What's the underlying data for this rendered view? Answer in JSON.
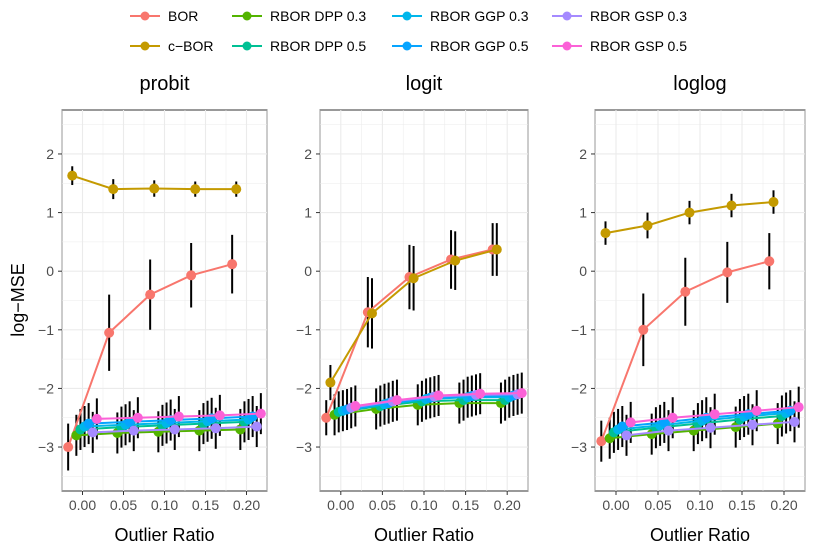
{
  "chart_data": {
    "type": "line",
    "xlabel": "Outlier Ratio",
    "ylabel": "log−MSE",
    "xlim": [
      -0.025,
      0.225
    ],
    "ylim": [
      -3.75,
      2.75
    ],
    "x_ticks": [
      0.0,
      0.05,
      0.1,
      0.15,
      0.2
    ],
    "x_tick_labels": [
      "0.00",
      "0.05",
      "0.10",
      "0.15",
      "0.20"
    ],
    "y_ticks": [
      -3,
      -2,
      -1,
      0,
      1,
      2
    ],
    "y_tick_labels": [
      "−3",
      "−2",
      "−1",
      "0",
      "1",
      "2"
    ],
    "grid": true,
    "legend_position": "top",
    "x": [
      0.0,
      0.05,
      0.1,
      0.15,
      0.2
    ],
    "series_info": [
      {
        "name": "BOR",
        "color": "#F8766D",
        "offset": -0.0175
      },
      {
        "name": "c−BOR",
        "color": "#C49A00",
        "offset": -0.0125
      },
      {
        "name": "RBOR DPP 0.3",
        "color": "#53B400",
        "offset": -0.0075
      },
      {
        "name": "RBOR DPP 0.5",
        "color": "#00C094",
        "offset": -0.0025
      },
      {
        "name": "RBOR GGP 0.3",
        "color": "#00B6EB",
        "offset": 0.0025
      },
      {
        "name": "RBOR GGP 0.5",
        "color": "#06A4FF",
        "offset": 0.0075
      },
      {
        "name": "RBOR GSP 0.3",
        "color": "#A58AFF",
        "offset": 0.0125
      },
      {
        "name": "RBOR GSP 0.5",
        "color": "#FB61D7",
        "offset": 0.0175
      }
    ],
    "legend_order": [
      0,
      2,
      4,
      6,
      1,
      3,
      5,
      7
    ],
    "panels": [
      {
        "title": "probit",
        "series": [
          {
            "name": "BOR",
            "values": [
              -3.0,
              -1.05,
              -0.4,
              -0.07,
              0.12
            ],
            "err": [
              0.4,
              0.65,
              0.6,
              0.55,
              0.5
            ]
          },
          {
            "name": "c−BOR",
            "values": [
              1.63,
              1.4,
              1.41,
              1.4,
              1.4
            ],
            "err": [
              0.16,
              0.17,
              0.14,
              0.13,
              0.13
            ]
          },
          {
            "name": "RBOR DPP 0.3",
            "values": [
              -2.8,
              -2.76,
              -2.74,
              -2.72,
              -2.7
            ],
            "err": [
              0.35,
              0.35,
              0.35,
              0.35,
              0.35
            ]
          },
          {
            "name": "RBOR DPP 0.5",
            "values": [
              -2.7,
              -2.66,
              -2.63,
              -2.6,
              -2.57
            ],
            "err": [
              0.35,
              0.35,
              0.35,
              0.35,
              0.35
            ]
          },
          {
            "name": "RBOR GGP 0.3",
            "values": [
              -2.65,
              -2.62,
              -2.59,
              -2.56,
              -2.53
            ],
            "err": [
              0.35,
              0.35,
              0.35,
              0.35,
              0.35
            ]
          },
          {
            "name": "RBOR GGP 0.5",
            "values": [
              -2.6,
              -2.57,
              -2.54,
              -2.51,
              -2.48
            ],
            "err": [
              0.35,
              0.35,
              0.35,
              0.35,
              0.35
            ]
          },
          {
            "name": "RBOR GSP 0.3",
            "values": [
              -2.75,
              -2.72,
              -2.7,
              -2.68,
              -2.65
            ],
            "err": [
              0.35,
              0.35,
              0.35,
              0.35,
              0.35
            ]
          },
          {
            "name": "RBOR GSP 0.5",
            "values": [
              -2.52,
              -2.5,
              -2.48,
              -2.46,
              -2.43
            ],
            "err": [
              0.35,
              0.35,
              0.35,
              0.35,
              0.35
            ]
          }
        ]
      },
      {
        "title": "logit",
        "series": [
          {
            "name": "BOR",
            "values": [
              -2.5,
              -0.7,
              -0.1,
              0.2,
              0.37
            ],
            "err": [
              0.3,
              0.6,
              0.55,
              0.5,
              0.45
            ]
          },
          {
            "name": "c−BOR",
            "values": [
              -1.9,
              -0.72,
              -0.12,
              0.18,
              0.37
            ],
            "err": [
              0.3,
              0.6,
              0.55,
              0.5,
              0.45
            ]
          },
          {
            "name": "RBOR DPP 0.3",
            "values": [
              -2.45,
              -2.35,
              -2.28,
              -2.25,
              -2.25
            ],
            "err": [
              0.35,
              0.35,
              0.35,
              0.35,
              0.35
            ]
          },
          {
            "name": "RBOR DPP 0.5",
            "values": [
              -2.4,
              -2.3,
              -2.22,
              -2.2,
              -2.2
            ],
            "err": [
              0.35,
              0.35,
              0.35,
              0.35,
              0.35
            ]
          },
          {
            "name": "RBOR GGP 0.3",
            "values": [
              -2.38,
              -2.27,
              -2.18,
              -2.15,
              -2.15
            ],
            "err": [
              0.35,
              0.35,
              0.35,
              0.35,
              0.35
            ]
          },
          {
            "name": "RBOR GGP 0.5",
            "values": [
              -2.36,
              -2.25,
              -2.16,
              -2.13,
              -2.12
            ],
            "err": [
              0.35,
              0.35,
              0.35,
              0.35,
              0.35
            ]
          },
          {
            "name": "RBOR GSP 0.3",
            "values": [
              -2.33,
              -2.22,
              -2.14,
              -2.11,
              -2.1
            ],
            "err": [
              0.35,
              0.35,
              0.35,
              0.35,
              0.35
            ]
          },
          {
            "name": "RBOR GSP 0.5",
            "values": [
              -2.3,
              -2.2,
              -2.12,
              -2.09,
              -2.08
            ],
            "err": [
              0.35,
              0.35,
              0.35,
              0.35,
              0.35
            ]
          }
        ]
      },
      {
        "title": "loglog",
        "series": [
          {
            "name": "BOR",
            "values": [
              -2.9,
              -1.0,
              -0.35,
              -0.02,
              0.17
            ],
            "err": [
              0.35,
              0.62,
              0.58,
              0.52,
              0.48
            ]
          },
          {
            "name": "c−BOR",
            "values": [
              0.65,
              0.78,
              1.0,
              1.12,
              1.18
            ],
            "err": [
              0.2,
              0.22,
              0.2,
              0.2,
              0.2
            ]
          },
          {
            "name": "RBOR DPP 0.3",
            "values": [
              -2.85,
              -2.78,
              -2.72,
              -2.66,
              -2.6
            ],
            "err": [
              0.35,
              0.35,
              0.35,
              0.35,
              0.35
            ]
          },
          {
            "name": "RBOR DPP 0.5",
            "values": [
              -2.75,
              -2.67,
              -2.6,
              -2.53,
              -2.47
            ],
            "err": [
              0.35,
              0.35,
              0.35,
              0.35,
              0.35
            ]
          },
          {
            "name": "RBOR GGP 0.3",
            "values": [
              -2.7,
              -2.63,
              -2.55,
              -2.48,
              -2.42
            ],
            "err": [
              0.35,
              0.35,
              0.35,
              0.35,
              0.35
            ]
          },
          {
            "name": "RBOR GGP 0.5",
            "values": [
              -2.65,
              -2.58,
              -2.5,
              -2.44,
              -2.38
            ],
            "err": [
              0.35,
              0.35,
              0.35,
              0.35,
              0.35
            ]
          },
          {
            "name": "RBOR GSP 0.3",
            "values": [
              -2.8,
              -2.72,
              -2.67,
              -2.62,
              -2.57
            ],
            "err": [
              0.35,
              0.35,
              0.35,
              0.35,
              0.35
            ]
          },
          {
            "name": "RBOR GSP 0.5",
            "values": [
              -2.58,
              -2.5,
              -2.44,
              -2.38,
              -2.32
            ],
            "err": [
              0.35,
              0.35,
              0.35,
              0.35,
              0.35
            ]
          }
        ]
      }
    ]
  }
}
